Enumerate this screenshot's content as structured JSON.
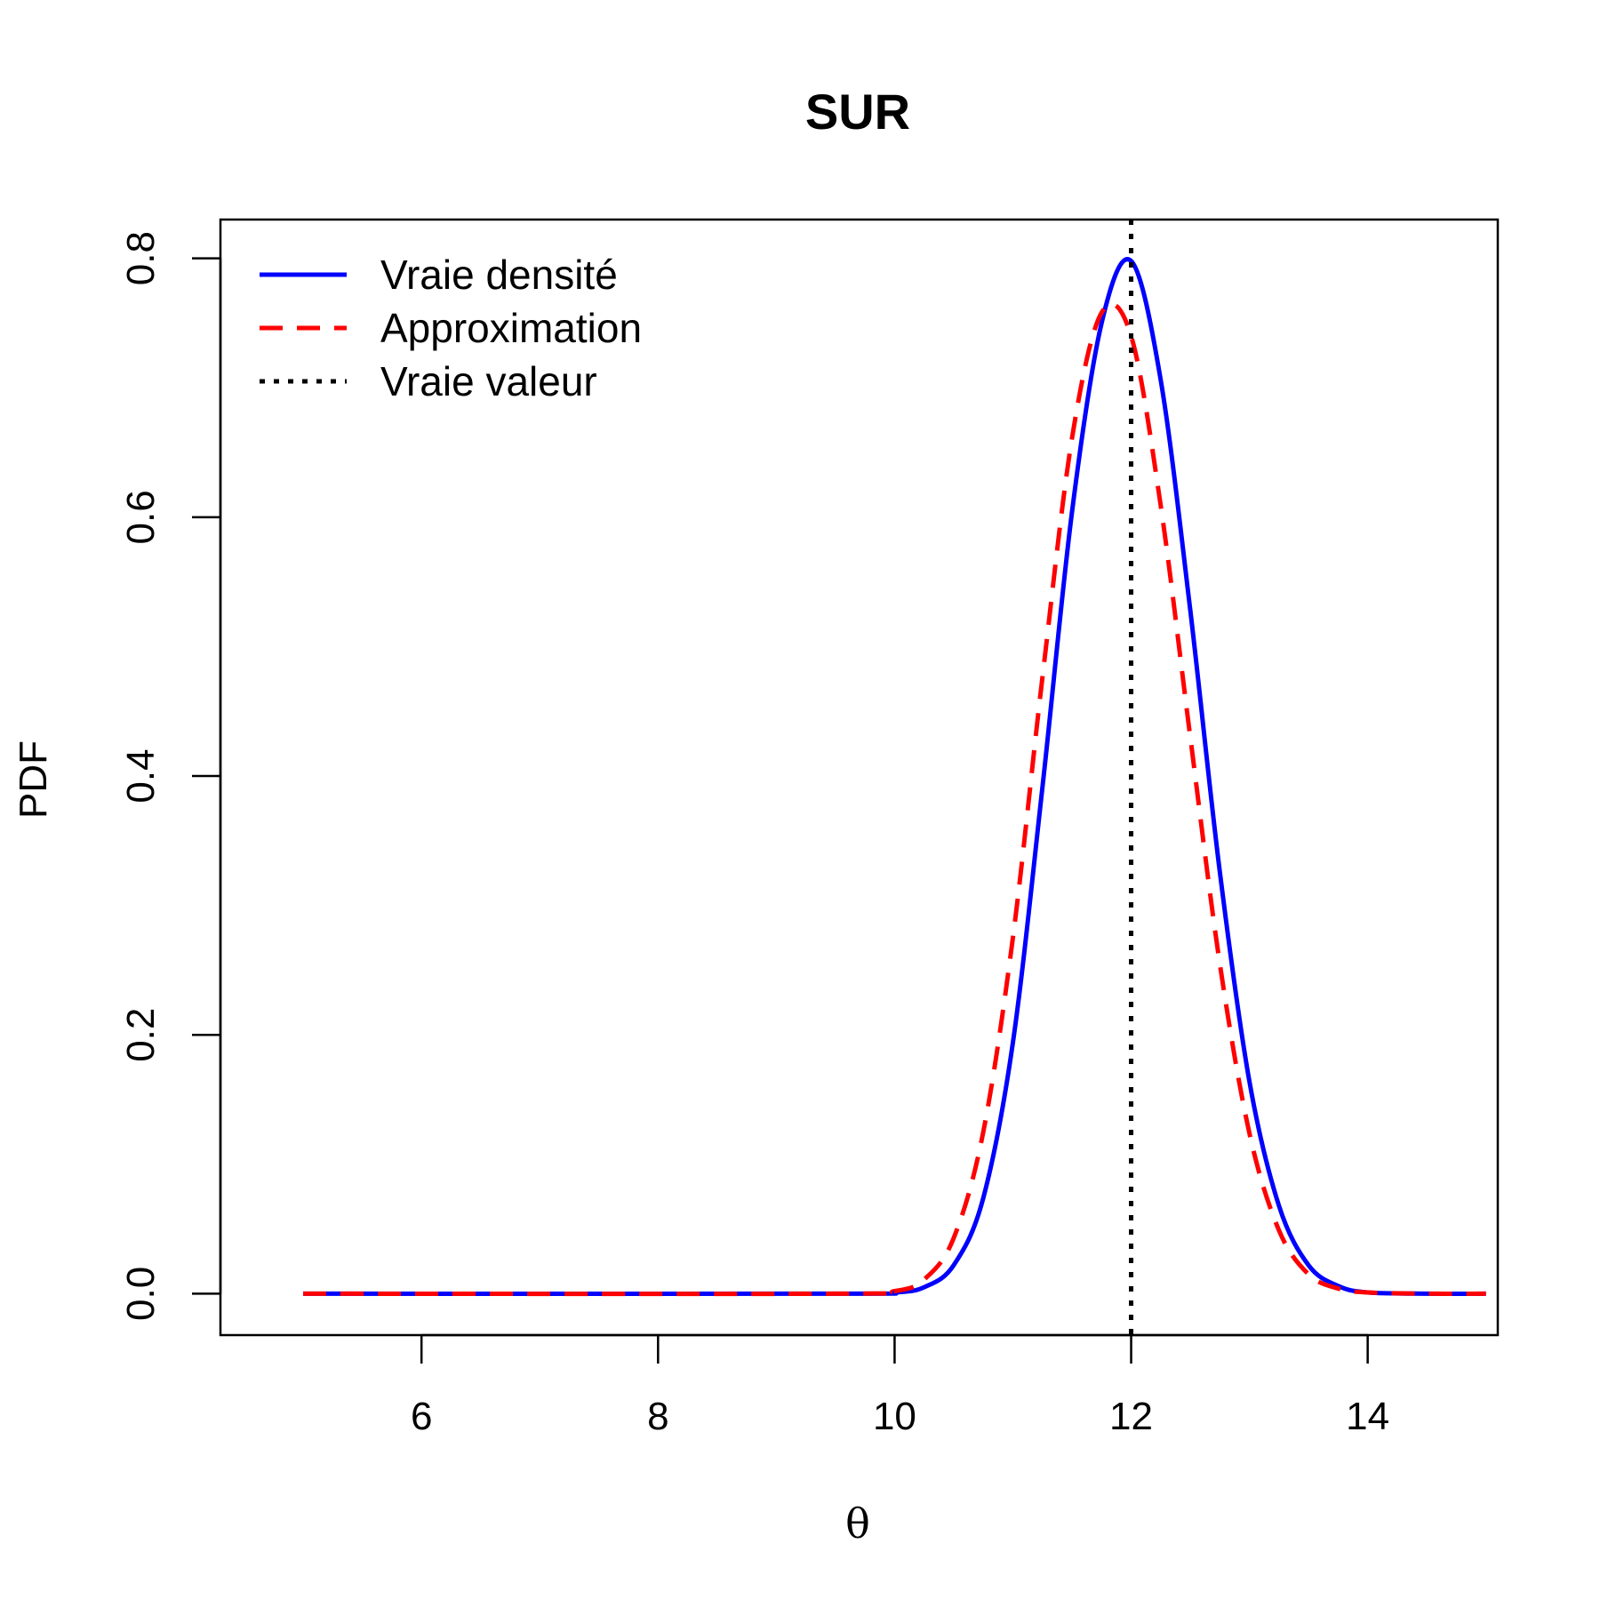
{
  "chart_data": {
    "type": "line",
    "title": "SUR",
    "xlabel": "θ",
    "ylabel": "PDF",
    "xlim": [
      4.3,
      15.1
    ],
    "ylim": [
      -0.032,
      0.83
    ],
    "x_ticks": [
      6,
      8,
      10,
      12,
      14
    ],
    "y_ticks": [
      0.0,
      0.2,
      0.4,
      0.6,
      0.8
    ],
    "x_tick_labels": [
      "6",
      "8",
      "10",
      "12",
      "14"
    ],
    "y_tick_labels": [
      "0.0",
      "0.2",
      "0.4",
      "0.6",
      "0.8"
    ],
    "legend_position": "top-left",
    "x": [
      5.0,
      9.5,
      10.0,
      10.25,
      10.5,
      10.75,
      11.0,
      11.25,
      11.5,
      11.75,
      12.0,
      12.25,
      12.5,
      12.75,
      13.0,
      13.25,
      13.5,
      13.75,
      14.0,
      14.5,
      15.0
    ],
    "series": [
      {
        "name": "Vraie densité",
        "color": "#0000ff",
        "style": "solid",
        "values": [
          0.0,
          0.0,
          0.001,
          0.005,
          0.022,
          0.074,
          0.194,
          0.391,
          0.604,
          0.75,
          0.798,
          0.706,
          0.528,
          0.326,
          0.164,
          0.068,
          0.022,
          0.006,
          0.001,
          0.0,
          0.0
        ]
      },
      {
        "name": "Approximation",
        "color": "#ff0000",
        "style": "dashed",
        "values": [
          0.0,
          0.0,
          0.002,
          0.011,
          0.043,
          0.125,
          0.275,
          0.476,
          0.661,
          0.758,
          0.74,
          0.609,
          0.43,
          0.255,
          0.124,
          0.049,
          0.015,
          0.004,
          0.001,
          0.0,
          0.0
        ]
      }
    ],
    "reference_lines": [
      {
        "name": "Vraie valeur",
        "x": 12,
        "color": "#000000",
        "style": "dotted"
      }
    ]
  }
}
